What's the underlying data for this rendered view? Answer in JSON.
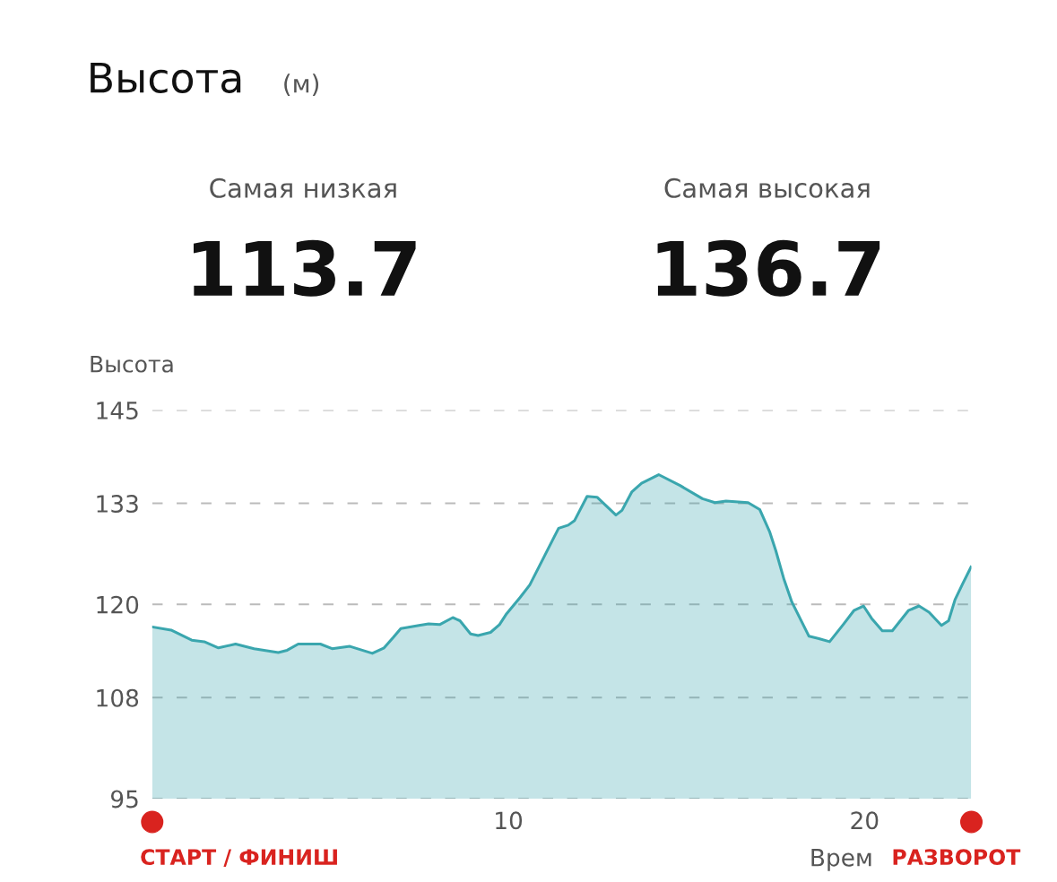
{
  "chart_data": {
    "type": "area",
    "title": "Высота",
    "subtitle": "(м)",
    "ylabel": "Высота",
    "xlabel": "Врем",
    "annotations": [
      "Самая низкая",
      "113.7",
      "Самая высокая",
      "136.7",
      "СТАРТ / ФИНИШ",
      "РАЗВОРОТ"
    ],
    "x": [
      0,
      0.53,
      1.11,
      1.46,
      1.86,
      2.34,
      2.86,
      3.54,
      3.79,
      4.1,
      4.72,
      5.05,
      5.55,
      6.18,
      6.51,
      6.76,
      6.98,
      7.49,
      7.76,
      8.07,
      8.44,
      8.64,
      8.94,
      9.15,
      9.5,
      9.75,
      9.95,
      10.33,
      10.6,
      11.0,
      11.41,
      11.68,
      11.86,
      12.21,
      12.49,
      13.02,
      13.19,
      13.47,
      13.74,
      14.22,
      14.82,
      15.45,
      15.8,
      16.11,
      16.73,
      17.06,
      17.34,
      17.51,
      17.74,
      17.96,
      18.44,
      18.72,
      19.02,
      19.4,
      19.7,
      19.97,
      20.2,
      20.5,
      20.78,
      21.23,
      21.53,
      21.81,
      22.16,
      22.36,
      22.54,
      22.76,
      22.99
    ],
    "series": [
      {
        "color": "#3aa6ae",
        "values": [
          117.1,
          116.7,
          115.4,
          115.2,
          114.4,
          114.9,
          114.3,
          113.8,
          114.1,
          114.9,
          114.9,
          114.3,
          114.6,
          113.7,
          114.4,
          115.7,
          116.9,
          117.3,
          117.5,
          117.4,
          118.3,
          117.9,
          116.2,
          116.0,
          116.4,
          117.4,
          118.8,
          120.9,
          122.5,
          126.1,
          129.8,
          130.2,
          130.8,
          133.9,
          133.8,
          131.5,
          132.1,
          134.5,
          135.6,
          136.7,
          135.3,
          133.6,
          133.1,
          133.3,
          133.1,
          132.2,
          129.3,
          126.9,
          123.2,
          120.3,
          115.9,
          115.6,
          115.2,
          117.4,
          119.2,
          119.8,
          118.2,
          116.6,
          116.6,
          119.2,
          119.8,
          119.0,
          117.3,
          117.9,
          120.6,
          122.7,
          124.8
        ]
      }
    ],
    "xlim": [
      0,
      23
    ],
    "ylim": [
      95,
      145
    ],
    "xticks": [
      10,
      20
    ],
    "yticks": [
      95,
      108,
      120,
      133,
      145
    ],
    "grid": "y",
    "legend": false,
    "marker": "none",
    "line_style": "solid"
  }
}
